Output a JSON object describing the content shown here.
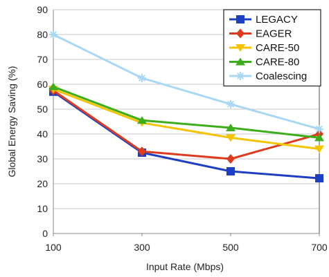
{
  "chart_data": {
    "type": "line",
    "title": "",
    "xlabel": "Input Rate (Mbps)",
    "ylabel": "Global Energy Saving (%)",
    "x": [
      100,
      300,
      500,
      700
    ],
    "xticks": [
      "100",
      "300",
      "500",
      "700"
    ],
    "xlim": [
      100,
      700
    ],
    "ylim": [
      0,
      90
    ],
    "yticks": [
      "0",
      "10",
      "20",
      "30",
      "40",
      "50",
      "60",
      "70",
      "80",
      "90"
    ],
    "grid": "horizontal",
    "legend": "top-right",
    "series": [
      {
        "name": "LEGACY",
        "values": [
          57,
          32.5,
          25,
          22.2
        ],
        "color": "#1f3fc2",
        "marker": "square"
      },
      {
        "name": "EAGER",
        "values": [
          57.5,
          33,
          30,
          40
        ],
        "color": "#e03a1c",
        "marker": "diamond"
      },
      {
        "name": "CARE-50",
        "values": [
          58,
          44.5,
          38.5,
          34
        ],
        "color": "#f5c400",
        "marker": "triangle-down"
      },
      {
        "name": "CARE-80",
        "values": [
          59,
          45.5,
          42.5,
          38.5
        ],
        "color": "#3cae1c",
        "marker": "triangle-up"
      },
      {
        "name": "Coalescing",
        "values": [
          80,
          62.5,
          52,
          42
        ],
        "color": "#a8d8f4",
        "marker": "asterisk"
      }
    ]
  }
}
